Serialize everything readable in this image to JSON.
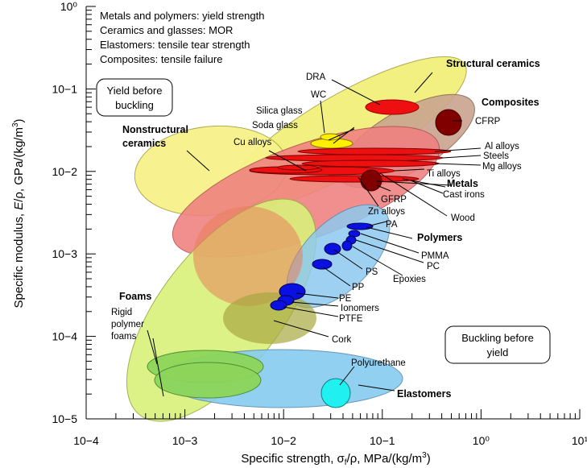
{
  "chart_data": {
    "type": "scatter",
    "title": "",
    "xlabel": "Specific strength, σf/ρ, MPa/(kg/m3)",
    "ylabel": "Specific modulus, E/ρ, GPa/(kg/m3)",
    "x_scale": "log",
    "y_scale": "log",
    "xlim": [
      0.0001,
      10
    ],
    "ylim": [
      1e-05,
      1
    ],
    "grid": false,
    "x_ticks": [
      "10−4",
      "10−3",
      "10−2",
      "10−1",
      "10⁰",
      "10¹"
    ],
    "y_ticks": [
      "10−5",
      "10−4",
      "10−3",
      "10−2",
      "10−1",
      "10⁰"
    ],
    "notes": [
      "Metals and polymers: yield strength",
      "Ceramics and glasses: MOR",
      "Elastomers: tensile tear strength",
      "Composites: tensile failure"
    ],
    "boxes": {
      "yield_before_buckling": [
        "Yield before",
        "buckling"
      ],
      "buckling_before_yield": [
        "Buckling before",
        "yield"
      ]
    },
    "families": [
      {
        "name": "Structural ceramics",
        "color": "#f2f07a",
        "x_range": [
          0.008,
          0.15
        ],
        "y_range": [
          0.008,
          0.2
        ]
      },
      {
        "name": "Nonstructural ceramics",
        "color": "#f7f28a",
        "x_range": [
          0.0002,
          0.02
        ],
        "y_range": [
          0.005,
          0.08
        ]
      },
      {
        "name": "Composites",
        "color": "#c9a48f",
        "x_range": [
          0.03,
          0.7
        ],
        "y_range": [
          0.005,
          0.13
        ]
      },
      {
        "name": "Metals",
        "color": "#f08080",
        "x_range": [
          0.0015,
          0.2
        ],
        "y_range": [
          0.002,
          0.05
        ]
      },
      {
        "name": "Polymers",
        "color": "#8ec9ef",
        "x_range": [
          0.01,
          0.1
        ],
        "y_range": [
          0.00015,
          0.004
        ]
      },
      {
        "name": "Foams",
        "color": "#d9f07a",
        "x_range": [
          0.0003,
          0.012
        ],
        "y_range": [
          1e-05,
          0.001
        ]
      },
      {
        "name": "Elastomers",
        "color": "#86ccef",
        "x_range": [
          0.002,
          0.3
        ],
        "y_range": [
          1e-05,
          6e-05
        ]
      }
    ],
    "materials": [
      {
        "name": "DRA",
        "x": 0.1,
        "y": 0.1
      },
      {
        "name": "WC",
        "x": 0.028,
        "y": 0.04
      },
      {
        "name": "Silica glass",
        "x": 0.035,
        "y": 0.032
      },
      {
        "name": "Soda glass",
        "x": 0.03,
        "y": 0.029
      },
      {
        "name": "Cu alloys",
        "x": 0.004,
        "y": 0.016
      },
      {
        "name": "CFRP",
        "x": 0.5,
        "y": 0.07
      },
      {
        "name": "Al alloys",
        "x": 0.1,
        "y": 0.027
      },
      {
        "name": "Steels",
        "x": 0.06,
        "y": 0.025
      },
      {
        "name": "Mg alloys",
        "x": 0.08,
        "y": 0.022
      },
      {
        "name": "Ti alloys",
        "x": 0.08,
        "y": 0.02
      },
      {
        "name": "Cast irons",
        "x": 0.03,
        "y": 0.014
      },
      {
        "name": "GFRP",
        "x": 0.06,
        "y": 0.012
      },
      {
        "name": "Zn alloys",
        "x": 0.015,
        "y": 0.015
      },
      {
        "name": "Wood",
        "x": 0.05,
        "y": 0.012
      },
      {
        "name": "PA",
        "x": 0.08,
        "y": 0.0025
      },
      {
        "name": "PMMA",
        "x": 0.06,
        "y": 0.002
      },
      {
        "name": "PC",
        "x": 0.05,
        "y": 0.0017
      },
      {
        "name": "PS",
        "x": 0.035,
        "y": 0.0013
      },
      {
        "name": "Epoxies",
        "x": 0.045,
        "y": 0.0015
      },
      {
        "name": "PP",
        "x": 0.025,
        "y": 0.0007
      },
      {
        "name": "PE",
        "x": 0.015,
        "y": 0.00035
      },
      {
        "name": "Ionomers",
        "x": 0.012,
        "y": 0.0003
      },
      {
        "name": "PTFE",
        "x": 0.01,
        "y": 0.00025
      },
      {
        "name": "Cork",
        "x": 0.005,
        "y": 0.0002
      },
      {
        "name": "Rigid polymer foams",
        "x": 0.0008,
        "y": 4e-05
      },
      {
        "name": "Polyurethane",
        "x": 0.05,
        "y": 2e-05
      }
    ]
  }
}
